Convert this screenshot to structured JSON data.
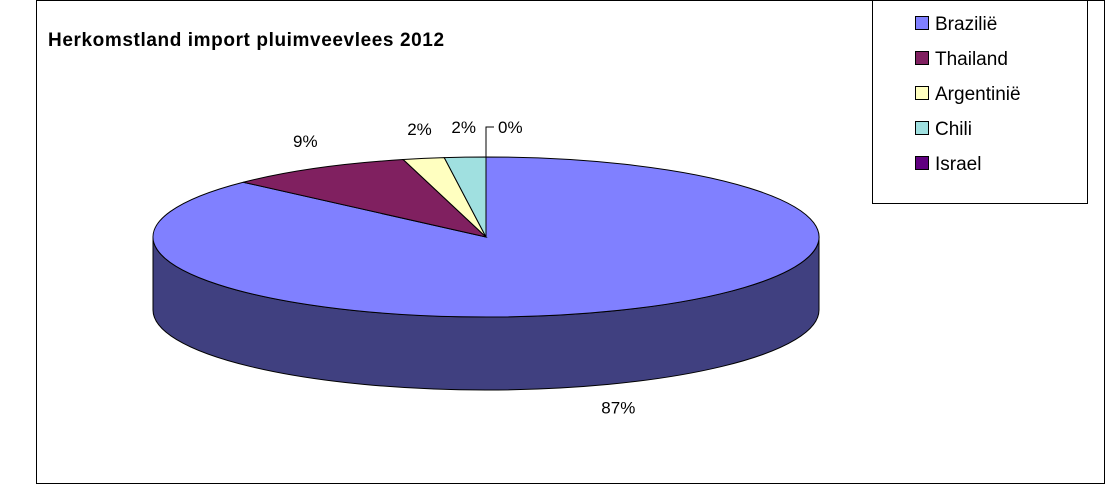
{
  "chart_data": {
    "type": "pie",
    "title": "Herkomstland import pluimveevlees 2012",
    "categories": [
      "Brazilië",
      "Thailand",
      "Argentinië",
      "Chili",
      "Israel"
    ],
    "values": [
      87,
      9,
      2,
      2,
      0
    ],
    "data_labels": [
      "87%",
      "9%",
      "2%",
      "2%",
      "0%"
    ],
    "colors": {
      "Brazilië": "#8080ff",
      "Thailand": "#802060",
      "Argentinië": "#ffffc0",
      "Chili": "#a0e0e0",
      "Israel": "#600080"
    },
    "three_d": true,
    "legend_position": "top-right"
  }
}
